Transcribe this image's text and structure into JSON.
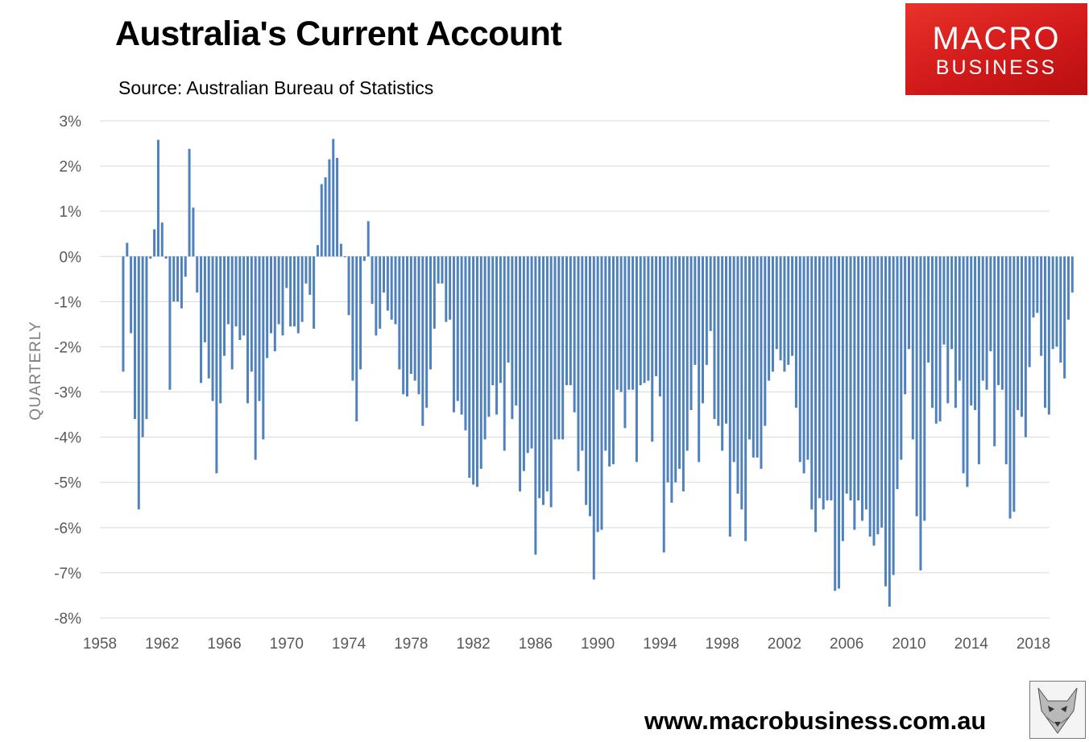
{
  "title": "Australia's Current Account",
  "subtitle": "Source: Australian Bureau of Statistics",
  "logo": {
    "line1": "MACRO",
    "line2": "BUSINESS"
  },
  "website": "www.macrobusiness.com.au",
  "chart_data": {
    "type": "bar",
    "ylabel": "QUARTERLY",
    "xlabel": "",
    "ylim": [
      -8,
      3
    ],
    "yticks": [
      "3%",
      "2%",
      "1%",
      "0%",
      "-1%",
      "-2%",
      "-3%",
      "-4%",
      "-5%",
      "-6%",
      "-7%",
      "-8%"
    ],
    "xticks": [
      "1958",
      "1962",
      "1966",
      "1970",
      "1974",
      "1978",
      "1982",
      "1986",
      "1990",
      "1994",
      "1998",
      "2002",
      "2006",
      "2010",
      "2014",
      "2018"
    ],
    "grid": true,
    "bar_color": "#4F81BD",
    "start": "1959 Q3",
    "frequency": "quarterly",
    "values": [
      -2.55,
      0.3,
      -1.7,
      -3.6,
      -5.6,
      -4,
      -3.6,
      -0.05,
      0.6,
      2.58,
      0.75,
      -0.05,
      -2.95,
      -1,
      -1,
      -1.15,
      -0.45,
      2.38,
      1.08,
      -0.8,
      -2.8,
      -1.9,
      -2.7,
      -3.2,
      -4.8,
      -3.25,
      -2.2,
      -1.5,
      -2.5,
      -1.55,
      -1.85,
      -1.75,
      -3.25,
      -2.55,
      -4.5,
      -3.2,
      -4.05,
      -2.25,
      -1.7,
      -2.1,
      -1.5,
      -1.75,
      -0.7,
      -1.55,
      -1.55,
      -1.7,
      -1.45,
      -0.6,
      -0.85,
      -1.6,
      0.25,
      1.6,
      1.75,
      2.15,
      2.6,
      2.18,
      0.28,
      -0.02,
      -1.3,
      -2.75,
      -3.65,
      -2.5,
      -0.1,
      0.78,
      -1.05,
      -1.75,
      -1.6,
      -0.8,
      -1.2,
      -1.4,
      -1.5,
      -2.5,
      -3.05,
      -3.1,
      -2.6,
      -2.75,
      -3.05,
      -3.75,
      -3.35,
      -2.5,
      -1.6,
      -0.6,
      -0.6,
      -1.45,
      -1.4,
      -3.45,
      -3.2,
      -3.5,
      -3.85,
      -4.9,
      -5.05,
      -5.1,
      -4.7,
      -4.05,
      -3.55,
      -2.85,
      -3.5,
      -2.8,
      -4.3,
      -2.35,
      -3.6,
      -3.3,
      -5.2,
      -4.75,
      -4.35,
      -4.25,
      -6.6,
      -5.35,
      -5.5,
      -5.2,
      -5.55,
      -4.05,
      -4.05,
      -4.05,
      -2.85,
      -2.85,
      -3.45,
      -4.75,
      -4.3,
      -5.5,
      -5.75,
      -7.15,
      -6.1,
      -6.05,
      -4.3,
      -4.65,
      -4.6,
      -2.95,
      -3,
      -3.8,
      -2.95,
      -2.95,
      -4.55,
      -2.85,
      -2.8,
      -2.75,
      -4.1,
      -2.65,
      -3.1,
      -6.55,
      -5,
      -5.45,
      -5,
      -4.7,
      -5.2,
      -4.3,
      -3.4,
      -2.4,
      -4.55,
      -3.25,
      -2.4,
      -1.65,
      -3.6,
      -3.75,
      -4.3,
      -3.7,
      -6.2,
      -4.55,
      -5.25,
      -5.6,
      -6.3,
      -4.05,
      -4.45,
      -4.45,
      -4.7,
      -3.75,
      -2.75,
      -2.55,
      -2.05,
      -2.3,
      -2.55,
      -2.4,
      -2.2,
      -3.35,
      -4.55,
      -4.8,
      -4.5,
      -5.6,
      -6.1,
      -5.35,
      -5.6,
      -5.4,
      -5.4,
      -7.4,
      -7.35,
      -6.3,
      -5.25,
      -5.4,
      -6.05,
      -5.4,
      -5.85,
      -5.6,
      -6.2,
      -6.4,
      -6.15,
      -6.0,
      -7.3,
      -7.75,
      -7.05,
      -5.15,
      -4.5,
      -3.05,
      -2.05,
      -4.05,
      -5.75,
      -6.95,
      -5.85,
      -2.35,
      -3.35,
      -3.7,
      -3.65,
      -1.95,
      -3.25,
      -2.05,
      -3.35,
      -2.75,
      -4.8,
      -5.1,
      -3.3,
      -3.4,
      -4.6,
      -2.75,
      -2.95,
      -2.1,
      -4.2,
      -2.85,
      -2.95,
      -4.6,
      -5.8,
      -5.65,
      -3.4,
      -3.55,
      -4,
      -2.45,
      -1.35,
      -1.25,
      -2.2,
      -3.35,
      -3.5,
      -2.05,
      -2,
      -2.35,
      -2.7,
      -1.4,
      -0.8
    ]
  }
}
